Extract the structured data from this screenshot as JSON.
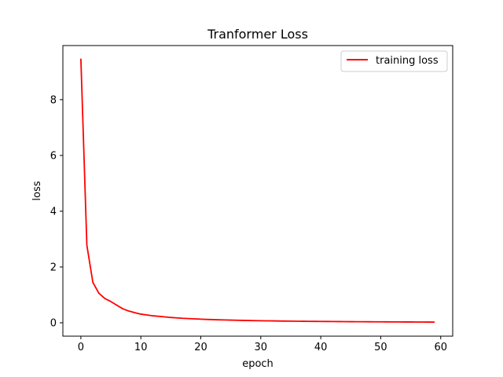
{
  "chart_data": {
    "type": "line",
    "title": "Tranformer Loss",
    "xlabel": "epoch",
    "ylabel": "loss",
    "xlim": [
      -3,
      62
    ],
    "ylim": [
      -0.48,
      9.94
    ],
    "xticks": [
      0,
      10,
      20,
      30,
      40,
      50,
      60
    ],
    "yticks": [
      0,
      2,
      4,
      6,
      8
    ],
    "grid": false,
    "legend_position": "top-right",
    "series": [
      {
        "name": "training loss",
        "color": "#ff0000",
        "x": [
          0,
          1,
          2,
          3,
          4,
          5,
          6,
          7,
          8,
          9,
          10,
          11,
          12,
          13,
          14,
          15,
          16,
          17,
          18,
          19,
          20,
          21,
          22,
          23,
          24,
          25,
          26,
          27,
          28,
          29,
          30,
          31,
          32,
          33,
          34,
          35,
          36,
          37,
          38,
          39,
          40,
          41,
          42,
          43,
          44,
          45,
          46,
          47,
          48,
          49,
          50,
          51,
          52,
          53,
          54,
          55,
          56,
          57,
          58,
          59
        ],
        "values": [
          9.47,
          2.78,
          1.45,
          1.06,
          0.87,
          0.76,
          0.63,
          0.5,
          0.42,
          0.36,
          0.31,
          0.28,
          0.25,
          0.23,
          0.21,
          0.19,
          0.175,
          0.16,
          0.15,
          0.14,
          0.13,
          0.12,
          0.113,
          0.106,
          0.1,
          0.095,
          0.09,
          0.085,
          0.081,
          0.077,
          0.073,
          0.07,
          0.067,
          0.064,
          0.061,
          0.058,
          0.056,
          0.054,
          0.052,
          0.05,
          0.048,
          0.046,
          0.044,
          0.042,
          0.041,
          0.039,
          0.038,
          0.037,
          0.035,
          0.034,
          0.033,
          0.032,
          0.031,
          0.03,
          0.029,
          0.028,
          0.027,
          0.026,
          0.025,
          0.024
        ]
      }
    ]
  }
}
